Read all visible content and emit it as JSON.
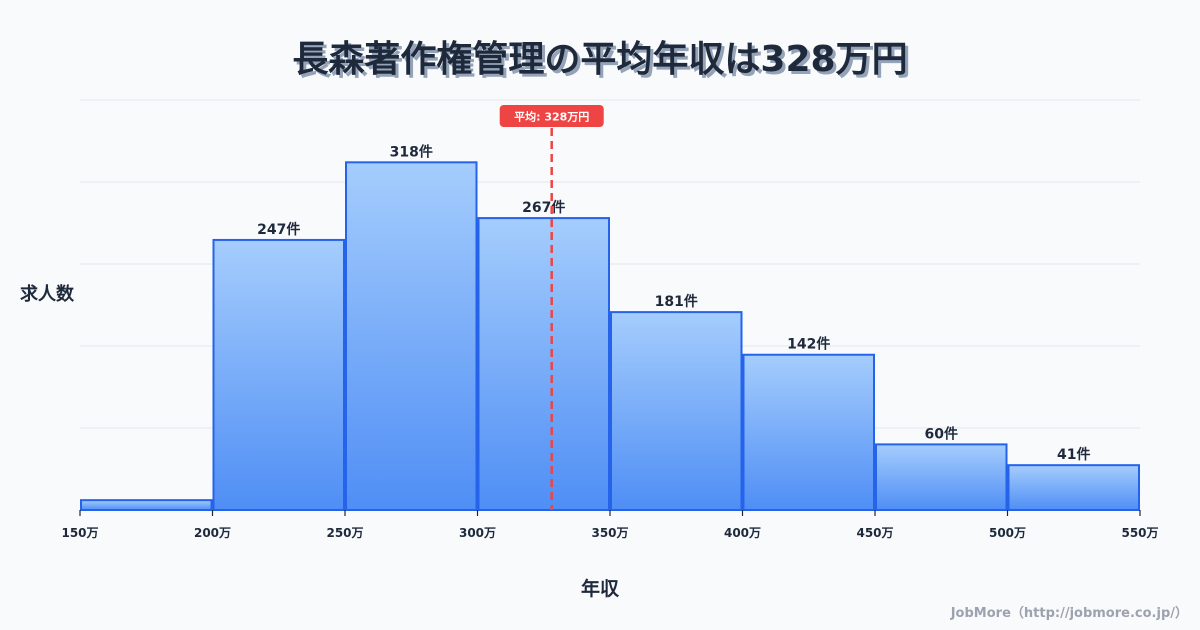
{
  "title": "長森著作権管理の平均年収は328万円",
  "y_axis_label": "求人数",
  "x_axis_label": "年収",
  "credit": "JobMore（http://jobmore.co.jp/）",
  "mean_label": "平均: 328万円",
  "colors": {
    "bar_top": "#a5cdfd",
    "bar_bottom": "#4f8ef5",
    "bar_stroke": "#2563eb",
    "mean_line": "#ef4444",
    "grid": "#e2e8f0",
    "text": "#1e293b",
    "background": "#f8fafc"
  },
  "chart_data": {
    "type": "bar",
    "subtype": "histogram",
    "title": "長森著作権管理の平均年収は328万円",
    "xlabel": "年収",
    "ylabel": "求人数",
    "bin_edges": [
      150,
      200,
      250,
      300,
      350,
      400,
      450,
      500,
      550
    ],
    "tick_labels": [
      "150万",
      "200万",
      "250万",
      "300万",
      "350万",
      "400万",
      "450万",
      "500万",
      "550万"
    ],
    "categories": [
      "150-200万",
      "200-250万",
      "250-300万",
      "300-350万",
      "350-400万",
      "400-450万",
      "450-500万",
      "500-550万"
    ],
    "values": [
      9,
      247,
      318,
      267,
      181,
      142,
      60,
      41
    ],
    "value_labels": [
      "",
      "247件",
      "318件",
      "267件",
      "181件",
      "142件",
      "60件",
      "41件"
    ],
    "ylim": [
      0,
      375
    ],
    "grid": true,
    "annotations": [
      {
        "type": "vline",
        "x": 328,
        "label": "平均: 328万円",
        "style": "dashed",
        "color": "#ef4444"
      }
    ]
  }
}
